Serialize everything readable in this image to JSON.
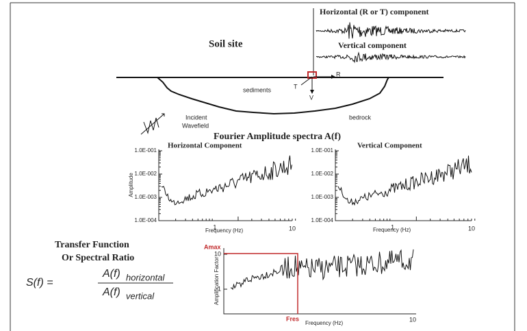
{
  "site": {
    "title": "Soil site",
    "horizontal_component": "Horizontal (R or T) component",
    "vertical_component": "Vertical component",
    "sediments": "sediments",
    "bedrock": "bedrock",
    "incident": "Incident",
    "wavefield": "Wavefield",
    "r": "R",
    "t": "T",
    "v": "V"
  },
  "spectra": {
    "title": "Fourier Amplitude spectra A(f)",
    "horizontal": {
      "title": "Horizontal Component",
      "y_label": "Amplitude",
      "x_label": "Frequency (Hz)",
      "yticks": [
        "1.0E-001",
        "1.0E-002",
        "1.0E-003",
        "1.0E-004"
      ],
      "xticks": [
        "1",
        "10"
      ]
    },
    "vertical": {
      "title": "Vertical Component",
      "x_label": "Frequency (Hz)",
      "yticks": [
        "1.0E-001",
        "1.0E-002",
        "1.0E-003",
        "1.0E-004"
      ],
      "xticks": [
        "1",
        "10"
      ]
    }
  },
  "transfer": {
    "title_line1": "Transfer Function",
    "title_line2": "Or Spectral Ratio",
    "formula": {
      "lhs": "S(f) =",
      "numerator": "A(f)",
      "numerator_sub": "horizontal",
      "denominator": "A(f)",
      "denominator_sub": "vertical"
    },
    "y_label": "Amplification Factor",
    "amax": "Amax",
    "fres": "Fres",
    "x_label": "Frequency (Hz)",
    "yticks": [
      "10",
      "1"
    ],
    "xticks": [
      "10"
    ]
  }
}
